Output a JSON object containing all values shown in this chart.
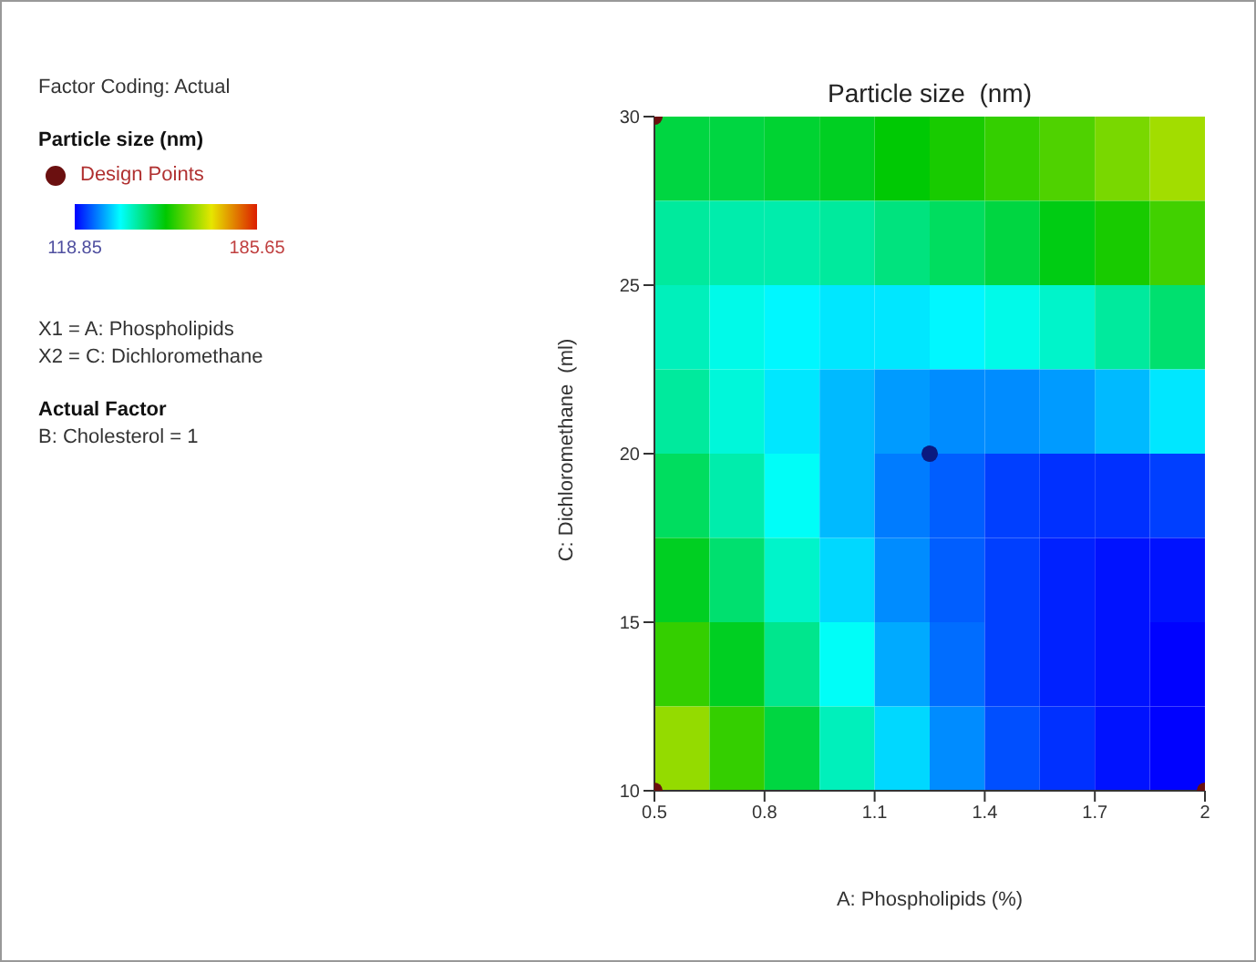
{
  "chart_data": {
    "type": "heatmap",
    "title": "Particle size  (nm)",
    "xlabel": "A: Phospholipids (%)",
    "ylabel": "C: Dichloromethane  (ml)",
    "clabel": "Particle size (nm)",
    "cells": [
      [
        148,
        148,
        149,
        150,
        152,
        154,
        156,
        158,
        161,
        164
      ],
      [
        142,
        141,
        141,
        142,
        144,
        146,
        148,
        151,
        154,
        157
      ],
      [
        140,
        137,
        135,
        134,
        134,
        135,
        137,
        139,
        142,
        145
      ],
      [
        142,
        138,
        134,
        131,
        129,
        128,
        128,
        129,
        131,
        134
      ],
      [
        146,
        141,
        136,
        131,
        127,
        125,
        123,
        122,
        122,
        123
      ],
      [
        150,
        145,
        139,
        133,
        128,
        125,
        123,
        121,
        120,
        120
      ],
      [
        156,
        150,
        143,
        136,
        130,
        126,
        123,
        121,
        120,
        119
      ],
      [
        163,
        156,
        148,
        140,
        133,
        128,
        124,
        122,
        120,
        119
      ]
    ],
    "clim": [
      118.85,
      185.65
    ],
    "cticks": [
      118.85,
      185.65
    ],
    "xlim": [
      0.5,
      2
    ],
    "xticks": [
      0.5,
      0.8,
      1.1,
      1.4,
      1.7,
      2
    ],
    "ylim": [
      10,
      30
    ],
    "yticks": [
      10,
      15,
      20,
      25,
      30
    ],
    "series": [
      {
        "type": "scatter",
        "name": "Design Points",
        "color": "#6b1010",
        "colors": [
          "#6b1010",
          "#6b1010",
          "#6b1010",
          "#0a1a80"
        ],
        "x": [
          0.5,
          0.5,
          2,
          1.25
        ],
        "values": [
          30,
          10,
          10,
          20
        ]
      }
    ],
    "legend": "left",
    "grid": false,
    "annotations": [
      "Factor Coding: Actual",
      "X1 = A: Phospholipids",
      "X2 = C: Dichloromethane",
      "Actual Factor",
      "B: Cholesterol = 1"
    ]
  }
}
